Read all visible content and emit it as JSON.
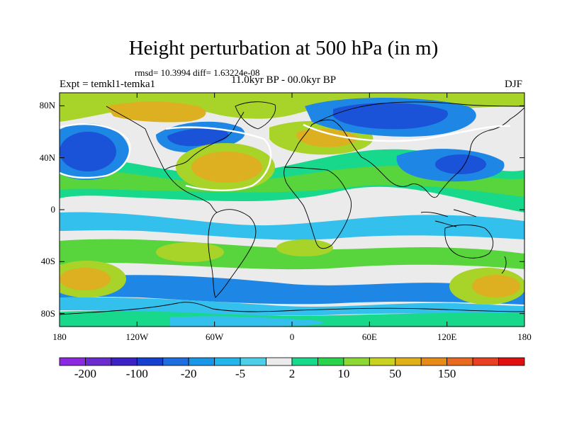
{
  "title": "Height perturbation at 500 hPa (in m)",
  "stats": "rmsd= 10.3994 diff= 1.63224e-08",
  "experiment": "Expt = temkl1-temka1",
  "period": "11.0kyr BP - 00.0kyr BP",
  "season": "DJF",
  "map": {
    "lat_labels": [
      "80N",
      "40N",
      "0",
      "40S",
      "80S"
    ],
    "lat_values": [
      80,
      40,
      0,
      -40,
      -80
    ],
    "lon_labels": [
      "180",
      "120W",
      "60W",
      "0",
      "60E",
      "120E",
      "180"
    ],
    "lon_values": [
      -180,
      -120,
      -60,
      0,
      60,
      120,
      180
    ]
  },
  "colorbar": {
    "colors": [
      "#8a2be2",
      "#6a2ccf",
      "#3a22c4",
      "#1640d0",
      "#1e6ee0",
      "#1a96e8",
      "#22b6ec",
      "#4dcfe8",
      "#ebebeb",
      "#18d88c",
      "#2ad44a",
      "#8cd834",
      "#c8d220",
      "#e0b018",
      "#e88a18",
      "#e86a20",
      "#e84020",
      "#e01010"
    ],
    "labels": [
      "-200",
      "-100",
      "-20",
      "-5",
      "2",
      "10",
      "50",
      "150"
    ],
    "label_positions": [
      1,
      3,
      5,
      7,
      9,
      11,
      13,
      15
    ]
  },
  "field_colors": {
    "strong_neg": "#1a52d8",
    "neg": "#1e86e4",
    "weak_neg": "#33c0ec",
    "zero": "#ebebeb",
    "weak_pos": "#18d88c",
    "pos": "#58d43c",
    "mid_pos": "#a8d42a",
    "strong_pos": "#dcb020"
  }
}
